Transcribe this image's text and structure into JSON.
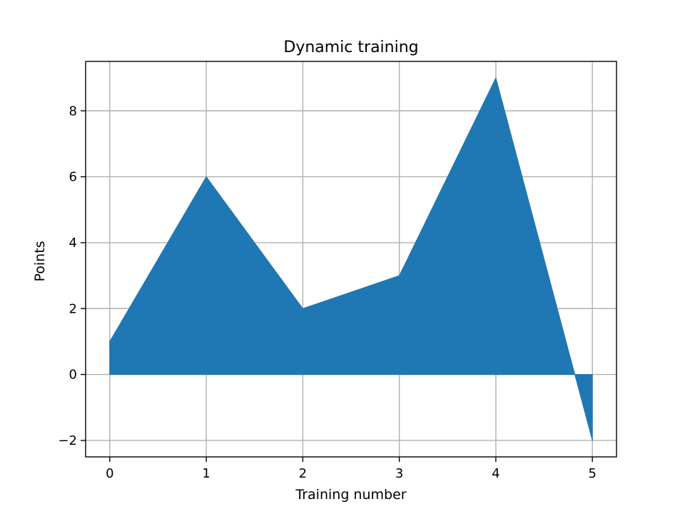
{
  "chart_data": {
    "type": "area",
    "title": "Dynamic training",
    "xlabel": "Training number",
    "ylabel": "Points",
    "x": [
      0,
      1,
      2,
      3,
      4,
      5
    ],
    "series": [
      {
        "values": [
          1,
          6,
          2,
          3,
          9,
          -2
        ],
        "color": "#1f77b4"
      }
    ],
    "fill_baseline": 0,
    "xlim": [
      -0.25,
      5.25
    ],
    "ylim": [
      -2.5,
      9.5
    ],
    "xticks": [
      0,
      1,
      2,
      3,
      4,
      5
    ],
    "xtick_labels": [
      "0",
      "1",
      "2",
      "3",
      "4",
      "5"
    ],
    "yticks": [
      -2,
      0,
      2,
      4,
      6,
      8
    ],
    "ytick_labels": [
      "−2",
      "0",
      "2",
      "4",
      "6",
      "8"
    ],
    "grid": true,
    "legend": false
  }
}
